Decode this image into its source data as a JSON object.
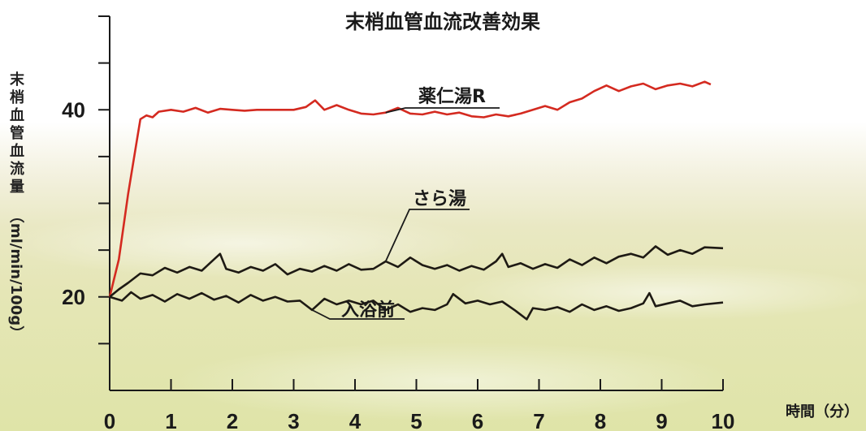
{
  "chart_data": {
    "type": "line",
    "title": "末梢血管血流改善効果",
    "ylabel": "末梢血管血流量",
    "ylabel_unit": "（ml/min/100g）",
    "xlabel": "時間（分）",
    "xlim": [
      0,
      10
    ],
    "ylim": [
      10,
      50
    ],
    "x_ticks": [
      "0",
      "1",
      "2",
      "3",
      "4",
      "5",
      "6",
      "7",
      "8",
      "9",
      "10"
    ],
    "y_tick_values": [
      15,
      20,
      25,
      30,
      35,
      40,
      45
    ],
    "y_tick_labels": {
      "20": "20",
      "40": "40"
    },
    "grid": false,
    "series": [
      {
        "name": "薬仁湯R",
        "color": "#d42a20",
        "points": [
          [
            0,
            20
          ],
          [
            0.15,
            24
          ],
          [
            0.3,
            31
          ],
          [
            0.45,
            37
          ],
          [
            0.5,
            39
          ],
          [
            0.6,
            39.4
          ],
          [
            0.7,
            39.2
          ],
          [
            0.8,
            39.8
          ],
          [
            1,
            40
          ],
          [
            1.2,
            39.8
          ],
          [
            1.4,
            40.2
          ],
          [
            1.6,
            39.7
          ],
          [
            1.8,
            40.1
          ],
          [
            2,
            40
          ],
          [
            2.2,
            39.9
          ],
          [
            2.4,
            40
          ],
          [
            2.6,
            40
          ],
          [
            2.8,
            40
          ],
          [
            3,
            40
          ],
          [
            3.2,
            40.3
          ],
          [
            3.35,
            41
          ],
          [
            3.5,
            40
          ],
          [
            3.7,
            40.5
          ],
          [
            3.9,
            40
          ],
          [
            4.1,
            39.6
          ],
          [
            4.3,
            39.5
          ],
          [
            4.5,
            39.7
          ],
          [
            4.7,
            40.2
          ],
          [
            4.9,
            39.6
          ],
          [
            5.1,
            39.5
          ],
          [
            5.3,
            39.8
          ],
          [
            5.5,
            39.5
          ],
          [
            5.7,
            39.7
          ],
          [
            5.9,
            39.3
          ],
          [
            6.1,
            39.2
          ],
          [
            6.3,
            39.5
          ],
          [
            6.5,
            39.3
          ],
          [
            6.7,
            39.6
          ],
          [
            6.9,
            40
          ],
          [
            7.1,
            40.4
          ],
          [
            7.3,
            40
          ],
          [
            7.5,
            40.8
          ],
          [
            7.7,
            41.2
          ],
          [
            7.9,
            42
          ],
          [
            8.1,
            42.6
          ],
          [
            8.3,
            42
          ],
          [
            8.5,
            42.5
          ],
          [
            8.7,
            42.8
          ],
          [
            8.9,
            42.2
          ],
          [
            9.1,
            42.6
          ],
          [
            9.3,
            42.8
          ],
          [
            9.5,
            42.5
          ],
          [
            9.7,
            43
          ],
          [
            9.8,
            42.7
          ]
        ]
      },
      {
        "name": "さら湯",
        "color": "#1e1a14",
        "points": [
          [
            0,
            20
          ],
          [
            0.15,
            20.8
          ],
          [
            0.3,
            21.5
          ],
          [
            0.5,
            22.5
          ],
          [
            0.7,
            22.3
          ],
          [
            0.9,
            23.1
          ],
          [
            1.1,
            22.6
          ],
          [
            1.3,
            23.2
          ],
          [
            1.5,
            22.8
          ],
          [
            1.7,
            24
          ],
          [
            1.8,
            24.6
          ],
          [
            1.9,
            23
          ],
          [
            2.1,
            22.6
          ],
          [
            2.3,
            23.2
          ],
          [
            2.5,
            22.8
          ],
          [
            2.7,
            23.5
          ],
          [
            2.9,
            22.4
          ],
          [
            3.1,
            23
          ],
          [
            3.3,
            22.7
          ],
          [
            3.5,
            23.3
          ],
          [
            3.7,
            22.8
          ],
          [
            3.9,
            23.5
          ],
          [
            4.1,
            22.9
          ],
          [
            4.3,
            23
          ],
          [
            4.5,
            23.8
          ],
          [
            4.7,
            23.2
          ],
          [
            4.9,
            24.2
          ],
          [
            5.1,
            23.4
          ],
          [
            5.3,
            23
          ],
          [
            5.5,
            23.4
          ],
          [
            5.7,
            22.8
          ],
          [
            5.9,
            23.3
          ],
          [
            6.1,
            22.9
          ],
          [
            6.3,
            23.8
          ],
          [
            6.4,
            24.6
          ],
          [
            6.5,
            23.2
          ],
          [
            6.7,
            23.6
          ],
          [
            6.9,
            23
          ],
          [
            7.1,
            23.5
          ],
          [
            7.3,
            23.1
          ],
          [
            7.5,
            24
          ],
          [
            7.7,
            23.4
          ],
          [
            7.9,
            24.2
          ],
          [
            8.1,
            23.6
          ],
          [
            8.3,
            24.3
          ],
          [
            8.5,
            24.6
          ],
          [
            8.7,
            24.2
          ],
          [
            8.9,
            25.4
          ],
          [
            9.1,
            24.5
          ],
          [
            9.3,
            25
          ],
          [
            9.5,
            24.6
          ],
          [
            9.7,
            25.3
          ],
          [
            10,
            25.2
          ]
        ]
      },
      {
        "name": "入浴前",
        "color": "#1e1a14",
        "points": [
          [
            0,
            20
          ],
          [
            0.2,
            19.6
          ],
          [
            0.35,
            20.5
          ],
          [
            0.5,
            19.8
          ],
          [
            0.7,
            20.2
          ],
          [
            0.9,
            19.5
          ],
          [
            1.1,
            20.3
          ],
          [
            1.3,
            19.8
          ],
          [
            1.5,
            20.4
          ],
          [
            1.7,
            19.7
          ],
          [
            1.9,
            20.1
          ],
          [
            2.1,
            19.4
          ],
          [
            2.3,
            20.2
          ],
          [
            2.5,
            19.6
          ],
          [
            2.7,
            20
          ],
          [
            2.9,
            19.5
          ],
          [
            3.1,
            19.6
          ],
          [
            3.3,
            18.6
          ],
          [
            3.5,
            19.8
          ],
          [
            3.7,
            19.2
          ],
          [
            3.9,
            19.6
          ],
          [
            4.1,
            19.2
          ],
          [
            4.3,
            19.6
          ],
          [
            4.5,
            18.6
          ],
          [
            4.7,
            19.2
          ],
          [
            4.9,
            18.4
          ],
          [
            5.1,
            18.8
          ],
          [
            5.3,
            18.6
          ],
          [
            5.5,
            19.2
          ],
          [
            5.6,
            20.3
          ],
          [
            5.8,
            19.3
          ],
          [
            6,
            19.6
          ],
          [
            6.2,
            19.2
          ],
          [
            6.4,
            19.5
          ],
          [
            6.6,
            18.6
          ],
          [
            6.8,
            17.6
          ],
          [
            6.9,
            18.8
          ],
          [
            7.1,
            18.6
          ],
          [
            7.3,
            18.9
          ],
          [
            7.5,
            18.4
          ],
          [
            7.7,
            19.2
          ],
          [
            7.9,
            18.6
          ],
          [
            8.1,
            19
          ],
          [
            8.3,
            18.5
          ],
          [
            8.5,
            18.8
          ],
          [
            8.7,
            19.3
          ],
          [
            8.8,
            20.4
          ],
          [
            8.9,
            19
          ],
          [
            9.1,
            19.3
          ],
          [
            9.3,
            19.6
          ],
          [
            9.5,
            19
          ],
          [
            9.7,
            19.2
          ],
          [
            10,
            19.4
          ]
        ]
      }
    ]
  }
}
